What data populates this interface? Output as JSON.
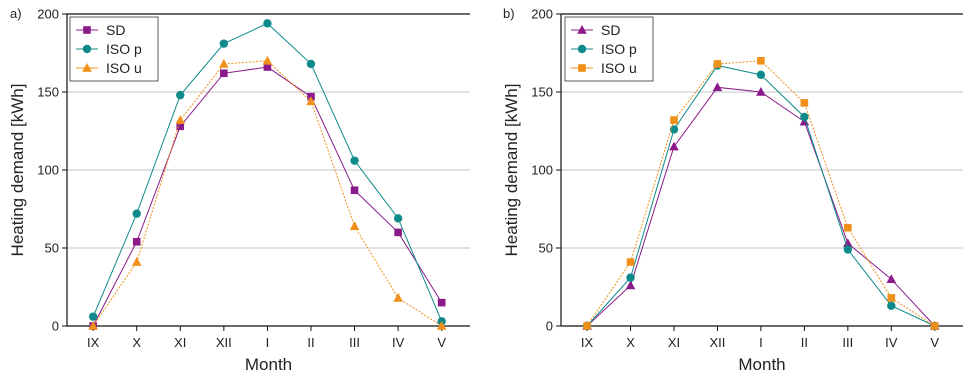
{
  "colors": {
    "SD": "#8B1A8B",
    "ISO p": "#0F8A8A",
    "ISO u": "#F0901A",
    "grid": "#B0B0B0",
    "axis": "#111111"
  },
  "chart_data": [
    {
      "panel_label": "a)",
      "type": "line",
      "title": "",
      "xlabel": "Month",
      "ylabel": "Heating demand [kWh]",
      "ylim": [
        0,
        200
      ],
      "yticks": [
        "0",
        "50",
        "100",
        "150",
        "200"
      ],
      "categories": [
        "IX",
        "X",
        "XI",
        "XII",
        "I",
        "II",
        "III",
        "IV",
        "V"
      ],
      "grid": "horizontal",
      "legend_position": "top-left",
      "series": [
        {
          "name": "SD",
          "marker": "square",
          "values": [
            0,
            54,
            128,
            162,
            166,
            147,
            87,
            60,
            15
          ]
        },
        {
          "name": "ISO p",
          "marker": "circle",
          "values": [
            6,
            72,
            148,
            181,
            194,
            168,
            106,
            69,
            3
          ]
        },
        {
          "name": "ISO u",
          "marker": "triangle",
          "values": [
            0,
            41,
            132,
            168,
            170,
            144,
            64,
            18,
            0
          ]
        }
      ]
    },
    {
      "panel_label": "b)",
      "type": "line",
      "title": "",
      "xlabel": "Month",
      "ylabel": "Heating demand [kWh]",
      "ylim": [
        0,
        200
      ],
      "yticks": [
        "0",
        "50",
        "100",
        "150",
        "200"
      ],
      "categories": [
        "IX",
        "X",
        "XI",
        "XII",
        "I",
        "II",
        "III",
        "IV",
        "V"
      ],
      "grid": "horizontal",
      "legend_position": "top-left",
      "series": [
        {
          "name": "SD",
          "marker": "triangle",
          "values": [
            0,
            26,
            115,
            153,
            150,
            131,
            53,
            30,
            0
          ]
        },
        {
          "name": "ISO p",
          "marker": "circle",
          "values": [
            0,
            31,
            126,
            167,
            161,
            134,
            49,
            13,
            0
          ]
        },
        {
          "name": "ISO u",
          "marker": "square",
          "values": [
            0,
            41,
            132,
            168,
            170,
            143,
            63,
            18,
            0
          ]
        }
      ]
    }
  ]
}
